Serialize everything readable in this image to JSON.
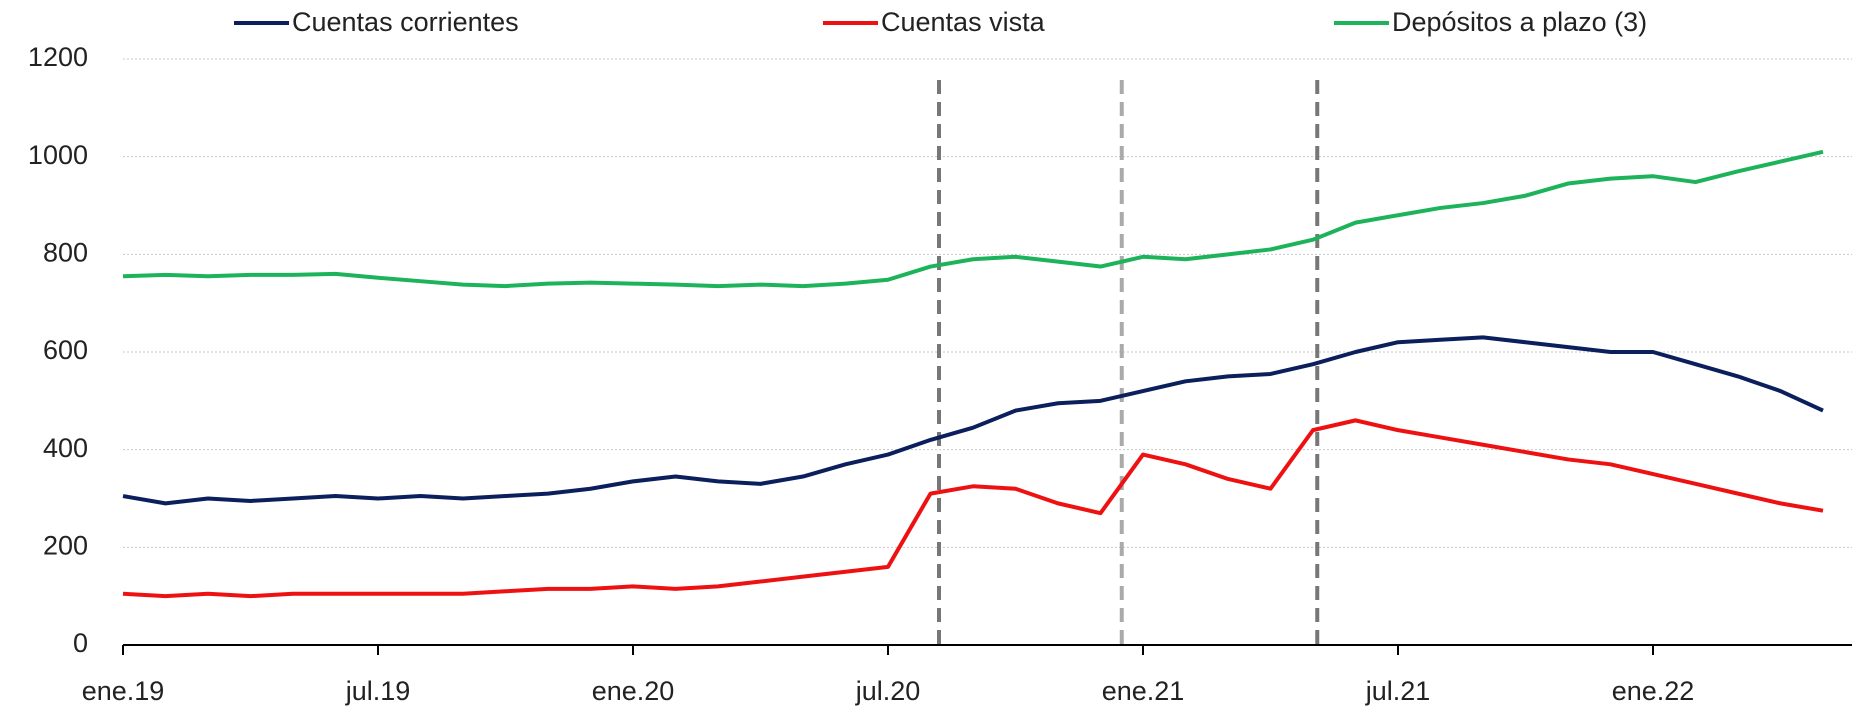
{
  "chart_data": {
    "type": "line",
    "categories": [
      "ene.19",
      null,
      null,
      null,
      null,
      null,
      "jul.19",
      null,
      null,
      null,
      null,
      null,
      "ene.20",
      null,
      null,
      null,
      null,
      null,
      "jul.20",
      null,
      null,
      null,
      null,
      null,
      "ene.21",
      null,
      null,
      null,
      null,
      null,
      "jul.21",
      null,
      null,
      null,
      null,
      null,
      "ene.22",
      null,
      null,
      null,
      null
    ],
    "series": [
      {
        "name": "Cuentas corrientes",
        "color": "#0b1f5c",
        "values": [
          305,
          290,
          300,
          295,
          300,
          305,
          300,
          305,
          300,
          305,
          310,
          320,
          335,
          345,
          335,
          330,
          345,
          370,
          390,
          420,
          445,
          480,
          495,
          500,
          520,
          540,
          550,
          555,
          575,
          600,
          620,
          625,
          630,
          620,
          610,
          600,
          600,
          575,
          550,
          520,
          480
        ]
      },
      {
        "name": "Cuentas vista",
        "color": "#ee1111",
        "values": [
          105,
          100,
          105,
          100,
          105,
          105,
          105,
          105,
          105,
          110,
          115,
          115,
          120,
          115,
          120,
          130,
          140,
          150,
          160,
          310,
          325,
          320,
          290,
          270,
          390,
          370,
          340,
          320,
          440,
          460,
          440,
          425,
          410,
          395,
          380,
          370,
          350,
          330,
          310,
          290,
          275
        ]
      },
      {
        "name": "Depósitos a plazo (3)",
        "color": "#1db35a",
        "values": [
          755,
          758,
          755,
          758,
          758,
          760,
          752,
          745,
          738,
          735,
          740,
          742,
          740,
          738,
          735,
          738,
          735,
          740,
          748,
          775,
          790,
          795,
          785,
          775,
          795,
          790,
          800,
          810,
          830,
          865,
          880,
          895,
          905,
          920,
          945,
          955,
          960,
          948,
          970,
          990,
          1010
        ]
      }
    ],
    "vlines": [
      {
        "x": 19.2,
        "color": "#777777"
      },
      {
        "x": 23.5,
        "color": "#aaaaaa"
      },
      {
        "x": 28.1,
        "color": "#777777"
      }
    ],
    "ylim": [
      0,
      1200
    ],
    "yticks": [
      0,
      200,
      400,
      600,
      800,
      1000,
      1200
    ],
    "grid": true,
    "legend": "top"
  }
}
